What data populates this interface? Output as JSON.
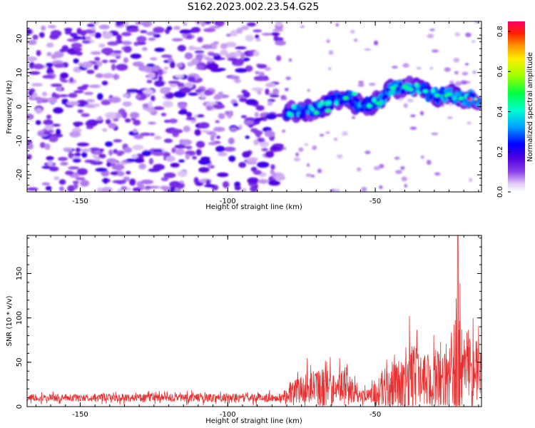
{
  "chart_data": {
    "title": "S162.2023.002.23.54.G25",
    "spectrogram": {
      "type": "heatmap",
      "xlabel": "Height of straight line (km)",
      "ylabel": "Frequency (Hz)",
      "xlim": [
        -168,
        -14
      ],
      "ylim": [
        -25,
        25
      ],
      "xticks": [
        -150,
        -100,
        -50
      ],
      "yticks": [
        -20,
        -10,
        0,
        10,
        20
      ],
      "colorbar": {
        "label": "Normalized spectral amplitude",
        "range": [
          0,
          0.85
        ],
        "ticks": [
          "0.0",
          "0.2",
          "0.4",
          "0.6",
          "0.8"
        ],
        "colors": [
          "#ffffff",
          "#d7b8f3",
          "#8a3ee8",
          "#6a00e0",
          "#0000ff",
          "#00aaff",
          "#00ffcc",
          "#00ff00",
          "#aaff00",
          "#ffff00",
          "#ff8800",
          "#ff0000",
          "#ff0066"
        ]
      },
      "ridge": {
        "description_points": [
          [
            -78,
            -1.5
          ],
          [
            -70,
            -1
          ],
          [
            -65,
            1
          ],
          [
            -60,
            3
          ],
          [
            -55,
            0
          ],
          [
            -50,
            1
          ],
          [
            -45,
            5
          ],
          [
            -40,
            6
          ],
          [
            -35,
            5
          ],
          [
            -30,
            3
          ],
          [
            -25,
            3.5
          ],
          [
            -20,
            2.5
          ],
          [
            -16,
            2
          ]
        ],
        "peak_amplitude": 0.82,
        "peak_x": -18
      }
    },
    "snr": {
      "type": "line",
      "xlabel": "Height of straight line (km)",
      "ylabel": "SNR (10 * v/v)",
      "xlim": [
        -168,
        -14
      ],
      "ylim": [
        0,
        193
      ],
      "xticks": [
        -150,
        -100,
        -50
      ],
      "yticks": [
        0,
        50,
        100,
        150
      ],
      "color": "#e83030",
      "envelope": [
        {
          "x": -168,
          "base": 10,
          "amp": 8
        },
        {
          "x": -82,
          "base": 10,
          "amp": 10
        },
        {
          "x": -80,
          "base": 15,
          "amp": 20
        },
        {
          "x": -72,
          "base": 22,
          "amp": 40
        },
        {
          "x": -68,
          "base": 22,
          "amp": 45
        },
        {
          "x": -63,
          "base": 22,
          "amp": 35
        },
        {
          "x": -60,
          "base": 25,
          "amp": 45
        },
        {
          "x": -56,
          "base": 12,
          "amp": 15
        },
        {
          "x": -52,
          "base": 12,
          "amp": 15
        },
        {
          "x": -48,
          "base": 20,
          "amp": 40
        },
        {
          "x": -43,
          "base": 25,
          "amp": 60
        },
        {
          "x": -38,
          "base": 30,
          "amp": 90
        },
        {
          "x": -34,
          "base": 30,
          "amp": 50
        },
        {
          "x": -30,
          "base": 30,
          "amp": 80
        },
        {
          "x": -26,
          "base": 30,
          "amp": 60
        },
        {
          "x": -22,
          "base": 40,
          "amp": 150
        },
        {
          "x": -20,
          "base": 50,
          "amp": 60
        },
        {
          "x": -17,
          "base": 50,
          "amp": 90
        },
        {
          "x": -15,
          "base": 35,
          "amp": 60
        },
        {
          "x": -14,
          "base": 40,
          "amp": 60
        }
      ],
      "max_value": 193
    }
  }
}
